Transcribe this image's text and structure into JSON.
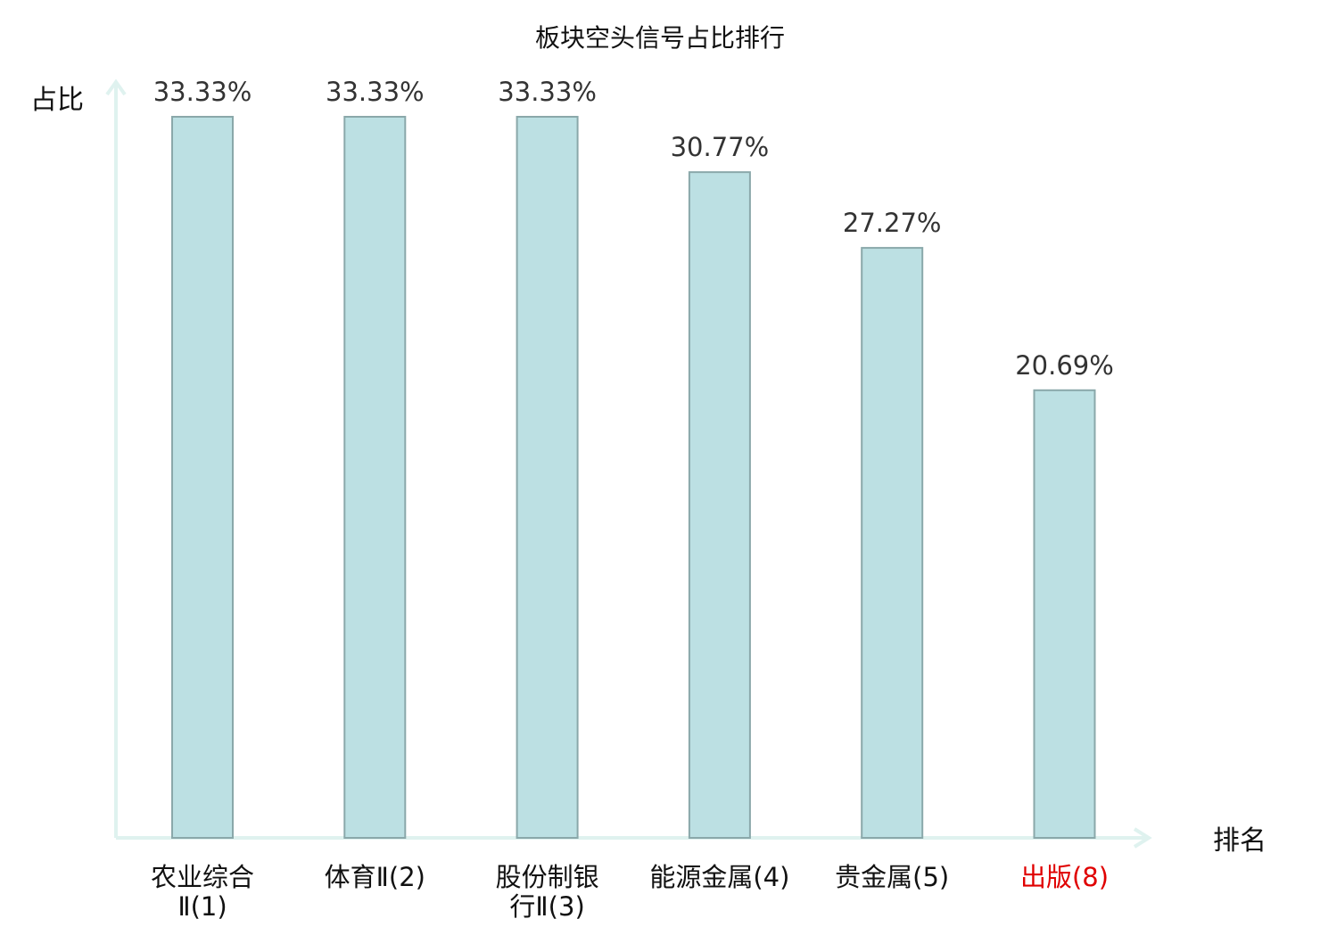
{
  "chart_data": {
    "type": "bar",
    "title": "板块空头信号占比排行",
    "ylabel": "占比",
    "xlabel": "排名",
    "ylim": [
      0,
      35
    ],
    "grid": false,
    "categories": [
      {
        "lines": [
          "农业综合",
          "Ⅱ(1)"
        ],
        "highlight": false
      },
      {
        "lines": [
          "体育Ⅱ(2)"
        ],
        "highlight": false
      },
      {
        "lines": [
          "股份制银",
          "行Ⅱ(3)"
        ],
        "highlight": false
      },
      {
        "lines": [
          "能源金属(4)"
        ],
        "highlight": false
      },
      {
        "lines": [
          "贵金属(5)"
        ],
        "highlight": false
      },
      {
        "lines": [
          "出版(8)"
        ],
        "highlight": true
      }
    ],
    "values": [
      33.33,
      33.33,
      33.33,
      30.77,
      27.27,
      20.69
    ],
    "data_labels": [
      "33.33%",
      "33.33%",
      "33.33%",
      "30.77%",
      "27.27%",
      "20.69%"
    ]
  },
  "colors": {
    "bar_fill": "#bce0e3",
    "bar_stroke": "#8aa8aa",
    "axis": "#dff2ef",
    "tick_text": "#111111",
    "highlight_text": "#e00000"
  }
}
